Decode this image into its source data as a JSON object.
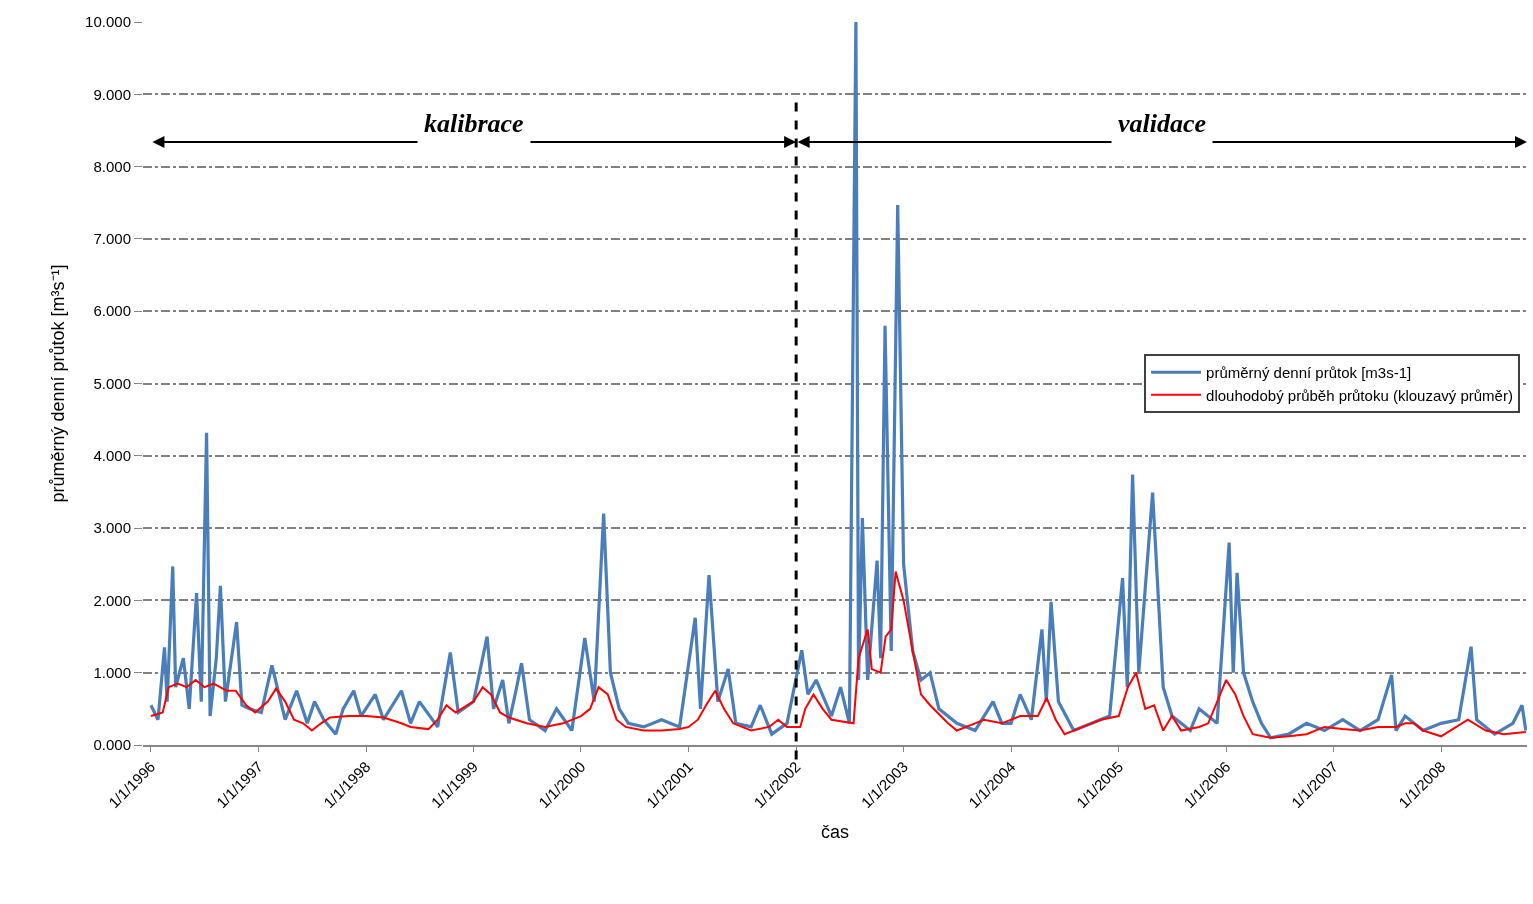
{
  "chart_data": {
    "type": "line",
    "xlabel": "čas",
    "ylabel": "průměrný denní průtok [m³s⁻¹]",
    "xlim": [
      "1995-12-05",
      "2008-10-19"
    ],
    "xticks": [
      {
        "value": "1996-01-01",
        "label": "1/1/1996"
      },
      {
        "value": "1997-01-01",
        "label": "1/1/1997"
      },
      {
        "value": "1998-01-01",
        "label": "1/1/1998"
      },
      {
        "value": "1999-01-01",
        "label": "1/1/1999"
      },
      {
        "value": "2000-01-01",
        "label": "1/1/2000"
      },
      {
        "value": "2001-01-01",
        "label": "1/1/2001"
      },
      {
        "value": "2002-01-01",
        "label": "1/1/2002"
      },
      {
        "value": "2003-01-01",
        "label": "1/1/2003"
      },
      {
        "value": "2004-01-01",
        "label": "1/1/2004"
      },
      {
        "value": "2005-01-01",
        "label": "1/1/2005"
      },
      {
        "value": "2006-01-01",
        "label": "1/1/2006"
      },
      {
        "value": "2007-01-01",
        "label": "1/1/2007"
      },
      {
        "value": "2008-01-01",
        "label": "1/1/2008"
      }
    ],
    "ylim": [
      0,
      10
    ],
    "yticks": [
      {
        "value": 0,
        "label": "0.000"
      },
      {
        "value": 1,
        "label": "1.000"
      },
      {
        "value": 2,
        "label": "2.000"
      },
      {
        "value": 3,
        "label": "3.000"
      },
      {
        "value": 4,
        "label": "4.000"
      },
      {
        "value": 5,
        "label": "5.000"
      },
      {
        "value": 6,
        "label": "6.000"
      },
      {
        "value": 7,
        "label": "7.000"
      },
      {
        "value": 8,
        "label": "8.000"
      },
      {
        "value": 9,
        "label": "9.000"
      },
      {
        "value": 10,
        "label": "10.000"
      }
    ],
    "grid": "y",
    "legend": "right",
    "marker": "none",
    "line_style": "solid",
    "ref_lines": [
      {
        "axis": "x",
        "value": "2002-01-01",
        "color": "#000000",
        "line_style": "dashed"
      }
    ],
    "annotations": [
      "kalibrace",
      "validace"
    ],
    "series": [
      {
        "name": "průměrný denní průtok [m3s-1]",
        "color": "#4a7ebb",
        "x": [
          "1996-01-01",
          "1996-01-25",
          "1996-02-16",
          "1996-02-25",
          "1996-03-15",
          "1996-03-25",
          "1996-04-20",
          "1996-05-10",
          "1996-06-04",
          "1996-06-20",
          "1996-07-08",
          "1996-07-20",
          "1996-08-10",
          "1996-08-24",
          "1996-09-10",
          "1996-10-18",
          "1996-11-05",
          "1996-12-01",
          "1997-01-10",
          "1997-02-15",
          "1997-04-01",
          "1997-05-10",
          "1997-06-15",
          "1997-07-10",
          "1997-08-10",
          "1997-09-20",
          "1997-10-15",
          "1997-11-20",
          "1997-12-15",
          "1998-02-01",
          "1998-03-01",
          "1998-05-01",
          "1998-06-01",
          "1998-07-01",
          "1998-09-01",
          "1998-10-14",
          "1998-11-10",
          "1999-01-01",
          "1999-02-16",
          "1999-03-10",
          "1999-04-10",
          "1999-05-01",
          "1999-05-25",
          "1999-06-13",
          "1999-07-10",
          "1999-09-01",
          "1999-10-10",
          "1999-12-01",
          "2000-01-14",
          "2000-02-15",
          "2000-03-18",
          "2000-04-10",
          "2000-05-10",
          "2000-06-10",
          "2000-08-01",
          "2000-10-01",
          "2000-12-01",
          "2001-01-23",
          "2001-02-10",
          "2001-03-11",
          "2001-04-10",
          "2001-05-15",
          "2001-06-10",
          "2001-08-01",
          "2001-09-01",
          "2001-10-10",
          "2001-12-01",
          "2002-01-20",
          "2002-02-10",
          "2002-03-10",
          "2002-05-01",
          "2002-06-01",
          "2002-07-01",
          "2002-07-23",
          "2002-08-01",
          "2002-08-14",
          "2002-09-01",
          "2002-10-03",
          "2002-10-15",
          "2002-10-30",
          "2002-11-20",
          "2002-12-12",
          "2003-01-01",
          "2003-02-01",
          "2003-03-01",
          "2003-04-01",
          "2003-05-01",
          "2003-07-01",
          "2003-09-01",
          "2003-11-01",
          "2003-12-01",
          "2004-01-01",
          "2004-02-01",
          "2004-03-10",
          "2004-04-15",
          "2004-04-30",
          "2004-05-16",
          "2004-06-10",
          "2004-08-01",
          "2004-10-01",
          "2004-12-01",
          "2005-01-14",
          "2005-01-30",
          "2005-02-17",
          "2005-03-10",
          "2005-04-26",
          "2005-06-01",
          "2005-07-01",
          "2005-09-01",
          "2005-10-01",
          "2005-12-01",
          "2006-01-11",
          "2006-01-25",
          "2006-02-07",
          "2006-03-01",
          "2006-04-01",
          "2006-05-01",
          "2006-06-01",
          "2006-08-01",
          "2006-10-01",
          "2006-12-01",
          "2007-02-01",
          "2007-04-01",
          "2007-06-01",
          "2007-07-17",
          "2007-08-01",
          "2007-09-01",
          "2007-11-01",
          "2008-01-01",
          "2008-03-01",
          "2008-04-12",
          "2008-05-01",
          "2008-07-01",
          "2008-09-01",
          "2008-10-02",
          "2008-10-15"
        ],
        "values": [
          0.55,
          0.35,
          1.35,
          0.6,
          2.47,
          0.8,
          1.2,
          0.5,
          2.1,
          0.6,
          4.32,
          0.4,
          1.2,
          2.2,
          0.6,
          1.7,
          0.55,
          0.5,
          0.45,
          1.1,
          0.35,
          0.75,
          0.3,
          0.6,
          0.35,
          0.15,
          0.5,
          0.75,
          0.4,
          0.7,
          0.35,
          0.75,
          0.3,
          0.6,
          0.25,
          1.28,
          0.45,
          0.6,
          1.5,
          0.5,
          0.9,
          0.3,
          0.75,
          1.13,
          0.35,
          0.2,
          0.5,
          0.2,
          1.48,
          0.6,
          3.2,
          1.0,
          0.5,
          0.3,
          0.25,
          0.35,
          0.25,
          1.76,
          0.5,
          2.35,
          0.6,
          1.05,
          0.3,
          0.25,
          0.55,
          0.15,
          0.3,
          1.31,
          0.7,
          0.9,
          0.4,
          0.8,
          0.3,
          10.0,
          0.9,
          3.14,
          0.9,
          2.55,
          1.2,
          5.8,
          1.3,
          7.47,
          2.5,
          1.3,
          0.9,
          1.0,
          0.5,
          0.3,
          0.2,
          0.6,
          0.3,
          0.3,
          0.7,
          0.35,
          1.6,
          0.6,
          1.98,
          0.6,
          0.2,
          0.3,
          0.4,
          2.31,
          0.8,
          3.74,
          1.0,
          3.49,
          0.8,
          0.4,
          0.2,
          0.5,
          0.3,
          2.8,
          1.0,
          2.38,
          1.0,
          0.6,
          0.3,
          0.1,
          0.15,
          0.3,
          0.2,
          0.35,
          0.2,
          0.35,
          0.97,
          0.2,
          0.4,
          0.2,
          0.3,
          0.35,
          1.36,
          0.35,
          0.15,
          0.3,
          0.55,
          0.2
        ]
      },
      {
        "name": "dlouhodobý průběh průtoku (klouzavý průměr)",
        "color": "#ff0000",
        "x": [
          "1996-01-01",
          "1996-02-10",
          "1996-03-01",
          "1996-04-01",
          "1996-05-01",
          "1996-06-01",
          "1996-07-01",
          "1996-08-01",
          "1996-09-15",
          "1996-10-15",
          "1996-11-20",
          "1996-12-20",
          "1997-02-01",
          "1997-03-01",
          "1997-04-01",
          "1997-05-01",
          "1997-06-01",
          "1997-07-01",
          "1997-08-01",
          "1997-09-01",
          "1997-11-01",
          "1998-01-01",
          "1998-03-01",
          "1998-05-01",
          "1998-06-01",
          "1998-08-01",
          "1998-09-01",
          "1998-10-01",
          "1998-11-01",
          "1999-01-01",
          "1999-02-01",
          "1999-03-01",
          "1999-04-01",
          "1999-05-01",
          "1999-07-01",
          "1999-09-01",
          "1999-11-01",
          "2000-01-01",
          "2000-02-01",
          "2000-03-01",
          "2000-04-01",
          "2000-05-01",
          "2000-06-01",
          "2000-08-01",
          "2000-10-01",
          "2000-12-01",
          "2001-01-01",
          "2001-02-01",
          "2001-03-01",
          "2001-04-01",
          "2001-05-01",
          "2001-06-01",
          "2001-08-01",
          "2001-10-01",
          "2001-11-01",
          "2001-12-01",
          "2002-01-15",
          "2002-02-01",
          "2002-03-01",
          "2002-04-01",
          "2002-05-01",
          "2002-07-15",
          "2002-08-01",
          "2002-09-01",
          "2002-09-15",
          "2002-10-15",
          "2002-11-01",
          "2002-11-20",
          "2002-12-05",
          "2003-01-01",
          "2003-02-01",
          "2003-03-01",
          "2003-04-01",
          "2003-06-01",
          "2003-07-01",
          "2003-09-01",
          "2003-10-01",
          "2003-12-01",
          "2004-02-01",
          "2004-04-01",
          "2004-05-01",
          "2004-06-01",
          "2004-07-01",
          "2004-09-01",
          "2004-11-01",
          "2005-01-01",
          "2005-02-01",
          "2005-03-01",
          "2005-04-01",
          "2005-05-01",
          "2005-06-01",
          "2005-07-01",
          "2005-08-01",
          "2005-10-01",
          "2005-11-01",
          "2006-01-01",
          "2006-02-01",
          "2006-03-01",
          "2006-04-01",
          "2006-06-01",
          "2006-08-01",
          "2006-10-01",
          "2006-12-01",
          "2007-02-01",
          "2007-04-01",
          "2007-06-01",
          "2007-08-01",
          "2007-09-01",
          "2007-10-01",
          "2007-11-01",
          "2008-01-01",
          "2008-04-01",
          "2008-06-01",
          "2008-08-01",
          "2008-10-15"
        ],
        "values": [
          0.4,
          0.45,
          0.8,
          0.85,
          0.8,
          0.9,
          0.8,
          0.85,
          0.75,
          0.75,
          0.55,
          0.45,
          0.6,
          0.78,
          0.6,
          0.35,
          0.3,
          0.2,
          0.3,
          0.38,
          0.4,
          0.4,
          0.38,
          0.3,
          0.25,
          0.22,
          0.35,
          0.55,
          0.45,
          0.6,
          0.8,
          0.7,
          0.45,
          0.38,
          0.3,
          0.25,
          0.3,
          0.4,
          0.5,
          0.8,
          0.7,
          0.35,
          0.25,
          0.2,
          0.2,
          0.22,
          0.25,
          0.35,
          0.55,
          0.75,
          0.5,
          0.3,
          0.2,
          0.25,
          0.35,
          0.25,
          0.25,
          0.5,
          0.7,
          0.5,
          0.35,
          0.3,
          1.2,
          1.6,
          1.05,
          1.0,
          1.5,
          1.6,
          2.4,
          2.0,
          1.3,
          0.7,
          0.55,
          0.3,
          0.2,
          0.3,
          0.35,
          0.3,
          0.4,
          0.4,
          0.65,
          0.35,
          0.15,
          0.25,
          0.35,
          0.4,
          0.8,
          1.0,
          0.5,
          0.55,
          0.2,
          0.4,
          0.2,
          0.25,
          0.3,
          0.9,
          0.7,
          0.4,
          0.15,
          0.1,
          0.12,
          0.15,
          0.25,
          0.22,
          0.2,
          0.25,
          0.25,
          0.3,
          0.3,
          0.2,
          0.12,
          0.35,
          0.2,
          0.15,
          0.18
        ]
      }
    ]
  }
}
